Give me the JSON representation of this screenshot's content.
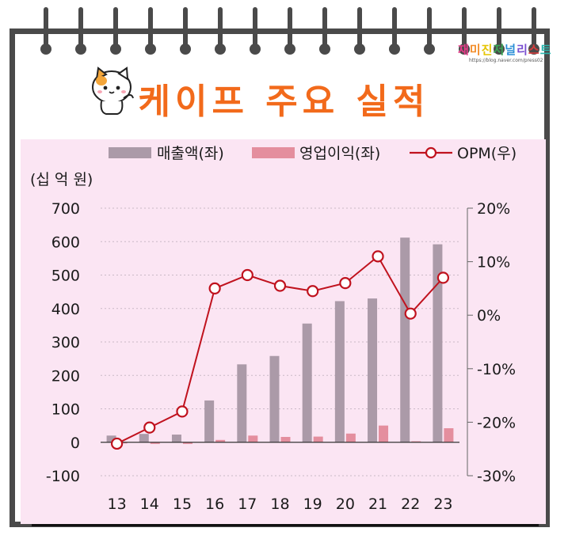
{
  "page": {
    "title": "케이프 주요 실적",
    "blog_name": "재미진저널리스트",
    "blog_url": "https://blog.naver.com/press02"
  },
  "colors": {
    "revenue": "#ab9aa8",
    "op_income": "#e48e9e",
    "opm": "#c0121e",
    "title": "#f26a1b",
    "chart_bg": "#fbe5f3"
  },
  "chart_data": {
    "type": "bar",
    "categories": [
      "13",
      "14",
      "15",
      "16",
      "17",
      "18",
      "19",
      "20",
      "21",
      "22",
      "23"
    ],
    "y_left_label": "(십 억 원)",
    "y_left_lim": [
      -100,
      700
    ],
    "y_left_ticks": [
      "700",
      "600",
      "500",
      "400",
      "300",
      "200",
      "100",
      "0",
      "-100"
    ],
    "y_right_lim": [
      -30,
      20
    ],
    "y_right_ticks": [
      "20%",
      "10%",
      "0%",
      "-10%",
      "-20%",
      "-30%"
    ],
    "legend_placement": "top",
    "grid": "horizontal dotted",
    "series": [
      {
        "name": "매출액(좌)",
        "kind": "bar",
        "axis": "left",
        "values": [
          20,
          25,
          23,
          125,
          233,
          258,
          355,
          422,
          430,
          612,
          592
        ]
      },
      {
        "name": "영업이익(좌)",
        "kind": "bar",
        "axis": "left",
        "values": [
          -2,
          -5,
          -5,
          7,
          20,
          16,
          17,
          26,
          50,
          3,
          42
        ]
      },
      {
        "name": "OPM(우)",
        "kind": "line",
        "axis": "right",
        "values": [
          -24,
          -21,
          -18,
          5,
          7.5,
          5.5,
          4.5,
          6,
          11,
          0.3,
          7
        ]
      }
    ]
  }
}
